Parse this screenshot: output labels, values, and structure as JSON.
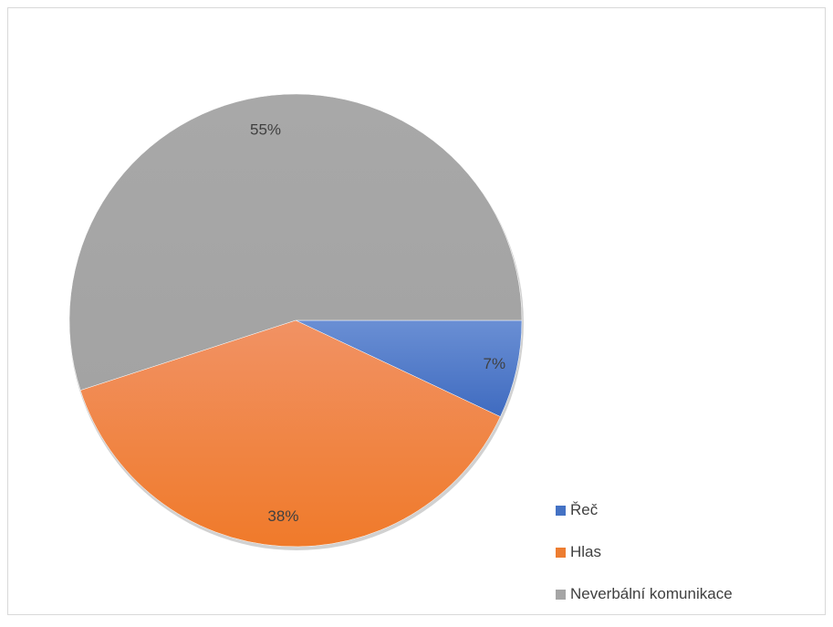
{
  "chart_data": {
    "type": "pie",
    "title": "",
    "categories": [
      "Řeč",
      "Hlas",
      "Neverbální komunikace"
    ],
    "values": [
      7,
      38,
      55
    ],
    "labels": [
      "7%",
      "38%",
      "55%"
    ],
    "colors": [
      "#4472c4",
      "#ed7d31",
      "#a5a5a5"
    ],
    "legend_position": "bottom-right",
    "start_angle_deg": 90,
    "direction": "clockwise"
  },
  "legend": {
    "items": [
      {
        "label": "Řeč",
        "color": "#4472c4"
      },
      {
        "label": "Hlas",
        "color": "#ed7d31"
      },
      {
        "label": "Neverbální komunikace",
        "color": "#a5a5a5"
      }
    ]
  }
}
